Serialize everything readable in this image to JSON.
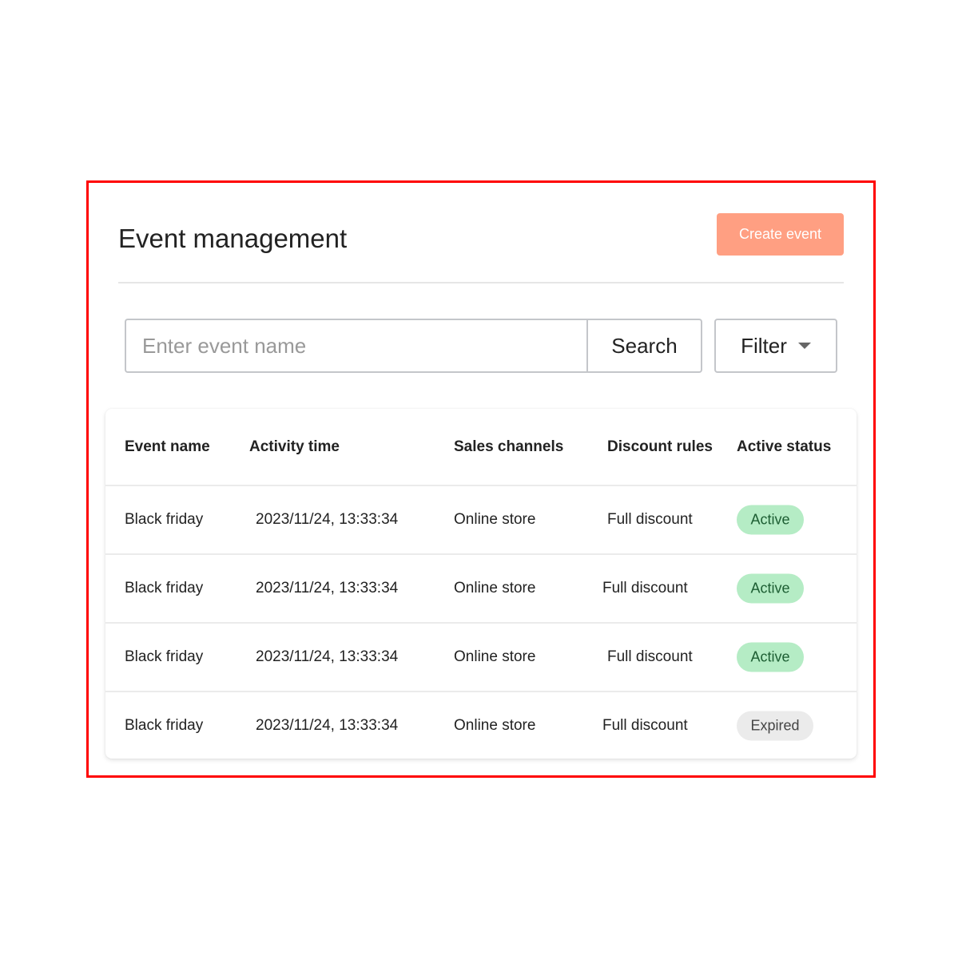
{
  "header": {
    "title": "Event management",
    "create_label": "Create event"
  },
  "toolbar": {
    "search_placeholder": "Enter event name",
    "search_label": "Search",
    "filter_label": "Filter",
    "filter_icon": "caret-down-icon"
  },
  "table": {
    "columns": [
      "Event name",
      "Activity time",
      "Sales channels",
      "Discount rules",
      "Active status"
    ],
    "rows": [
      {
        "name": "Black friday",
        "time": "2023/11/24, 13:33:34",
        "channel": "Online store",
        "rule": "Full discount",
        "status": "Active"
      },
      {
        "name": "Black friday",
        "time": "2023/11/24, 13:33:34",
        "channel": "Online store",
        "rule": "Full discount",
        "status": "Active"
      },
      {
        "name": "Black friday",
        "time": "2023/11/24, 13:33:34",
        "channel": "Online store",
        "rule": "Full discount",
        "status": "Active"
      },
      {
        "name": "Black friday",
        "time": "2023/11/24, 13:33:34",
        "channel": "Online store",
        "rule": "Full discount",
        "status": "Expired"
      }
    ]
  },
  "colors": {
    "accent": "#ff9f82",
    "active_bg": "#b5ecc5",
    "active_text": "#1d5e33",
    "expired_bg": "#ebebeb",
    "expired_text": "#444444",
    "frame": "#ff0000"
  }
}
